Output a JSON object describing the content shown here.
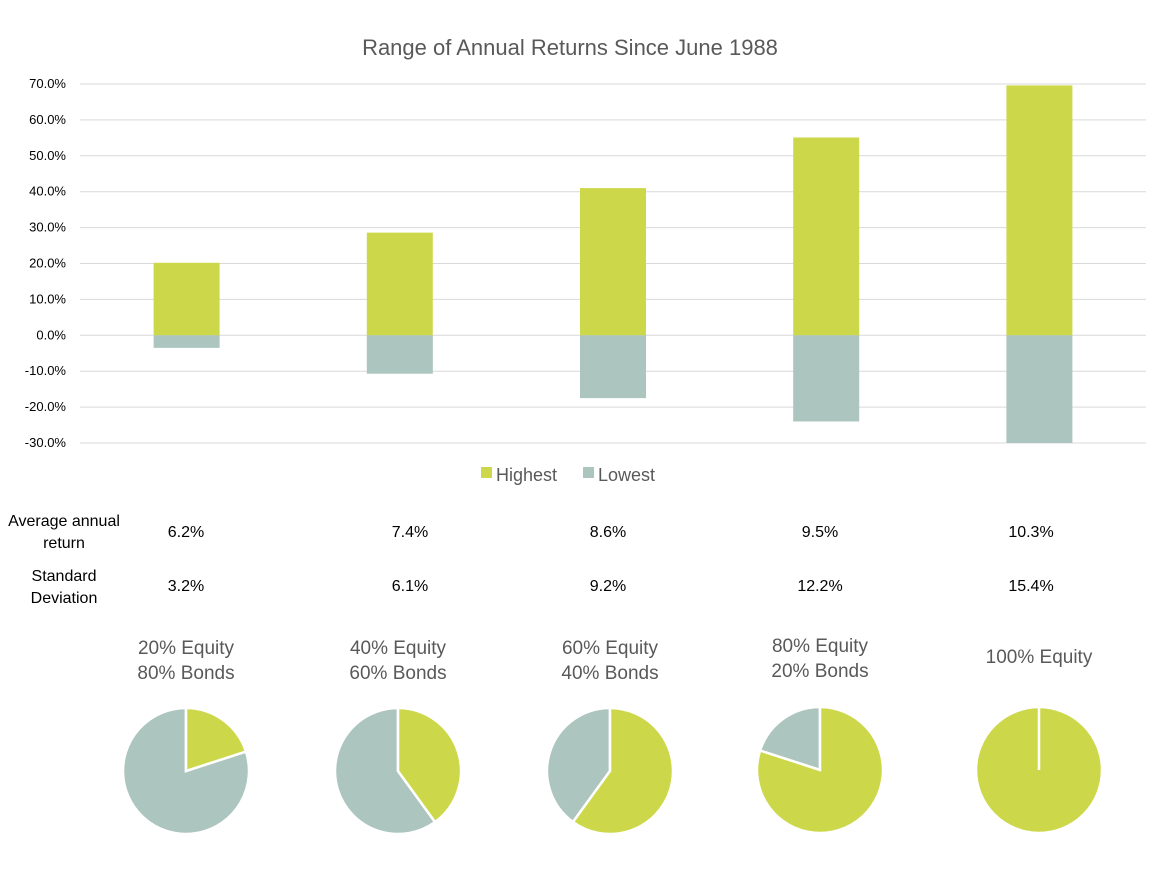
{
  "chart_data": [
    {
      "type": "bar",
      "title": "Range of Annual Returns Since June 1988",
      "categories": [
        "20% Equity 80% Bonds",
        "40% Equity 60% Bonds",
        "60% Equity 40% Bonds",
        "80% Equity 20% Bonds",
        "100% Equity"
      ],
      "series": [
        {
          "name": "Highest",
          "values": [
            20.2,
            28.6,
            41.0,
            55.1,
            69.6
          ],
          "color": "#cdd74a"
        },
        {
          "name": "Lowest",
          "values": [
            -3.5,
            -10.7,
            -17.5,
            -24.0,
            -30.0
          ],
          "color": "#acc5be"
        }
      ],
      "yticks": [
        "70.0%",
        "60.0%",
        "50.0%",
        "40.0%",
        "30.0%",
        "20.0%",
        "10.0%",
        "0.0%",
        "-10.0%",
        "-20.0%",
        "-30.0%"
      ],
      "ylim": [
        -30,
        70
      ],
      "grid": true,
      "legend": "bottom"
    },
    {
      "type": "table",
      "rows": [
        {
          "label": "Average annual return",
          "values": [
            "6.2%",
            "7.4%",
            "8.6%",
            "9.5%",
            "10.3%"
          ]
        },
        {
          "label": "Standard Deviation",
          "values": [
            "3.2%",
            "6.1%",
            "9.2%",
            "12.2%",
            "15.4%"
          ]
        }
      ]
    },
    {
      "type": "pie",
      "charts": [
        {
          "label_lines": [
            "20% Equity",
            "80% Bonds"
          ],
          "equity": 20,
          "bonds": 80
        },
        {
          "label_lines": [
            "40% Equity",
            "60% Bonds"
          ],
          "equity": 40,
          "bonds": 60
        },
        {
          "label_lines": [
            "60% Equity",
            "40% Bonds"
          ],
          "equity": 60,
          "bonds": 40
        },
        {
          "label_lines": [
            "80% Equity",
            "20% Bonds"
          ],
          "equity": 80,
          "bonds": 20
        },
        {
          "label_lines": [
            "100% Equity"
          ],
          "equity": 100,
          "bonds": 0
        }
      ],
      "colors": {
        "equity": "#cdd74a",
        "bonds": "#acc5be"
      }
    }
  ]
}
